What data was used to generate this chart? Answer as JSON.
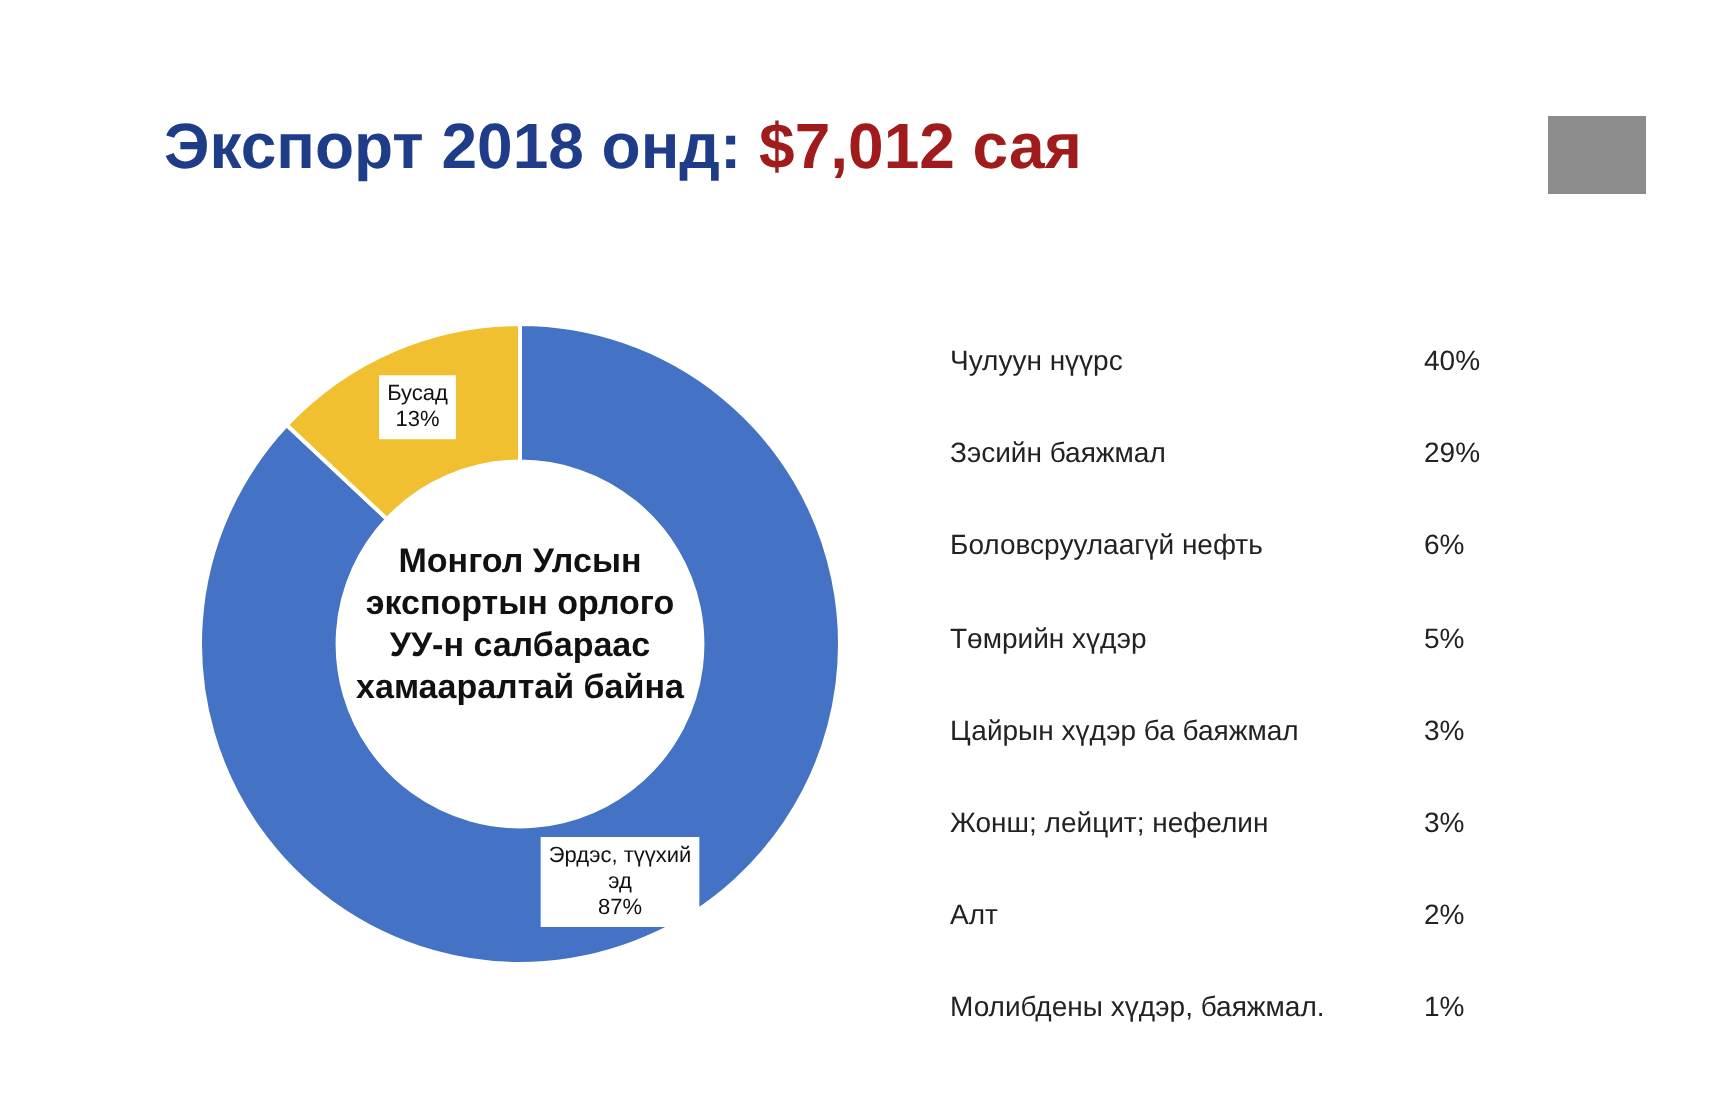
{
  "chart_data": {
    "type": "donut",
    "title": "Экспорт 2018 онд:",
    "subtitle": "$7,012 сая",
    "categories": [
      "Эрдэс, түүхий эд",
      "Бусад"
    ],
    "values": [
      87,
      13
    ],
    "colors": [
      "#4472c4",
      "#f0c030"
    ],
    "value_labels": [
      "87%",
      "13%"
    ],
    "legend": false,
    "annotations": [
      "Монгол Улсын экспортын орлого УУ-н  салбараас хамааралтай байна",
      "Чулуун нүүрс",
      "40%",
      "Зэсийн баяжмал",
      "29%",
      "Боловсруулаагүй нефть",
      "6%",
      "Төмрийн хүдэр",
      "5%",
      "Цайрын хүдэр ба баяжмал",
      "3%",
      "Жонш; лейцит; нефелин",
      "3%",
      "Алт",
      "2%",
      "Молибдены хүдэр, баяжмал.",
      "1%"
    ]
  }
}
